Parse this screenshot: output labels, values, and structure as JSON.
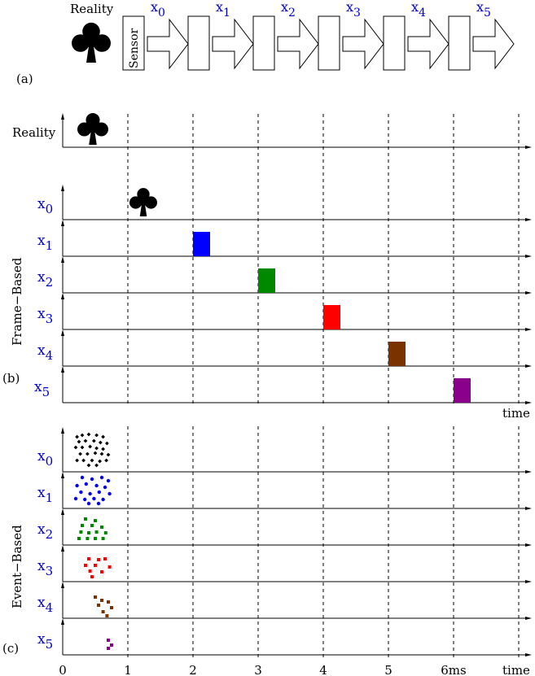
{
  "panel_a": {
    "tag": "(a)",
    "reality_label": "Reality",
    "sensor_label": "Sensor",
    "stage_labels": [
      {
        "base": "x",
        "sub": "0"
      },
      {
        "base": "x",
        "sub": "1"
      },
      {
        "base": "x",
        "sub": "2"
      },
      {
        "base": "x",
        "sub": "3"
      },
      {
        "base": "x",
        "sub": "4"
      },
      {
        "base": "x",
        "sub": "5"
      }
    ]
  },
  "panel_b": {
    "tag": "(b)",
    "side_label": "Frame−Based",
    "reality_label": "Reality",
    "axis_end_label": "time",
    "rows": [
      {
        "base": "x",
        "sub": "0",
        "color": "#000000",
        "frame_index": 1,
        "shape": "club"
      },
      {
        "base": "x",
        "sub": "1",
        "color": "#0000ff",
        "frame_index": 2,
        "shape": "rect"
      },
      {
        "base": "x",
        "sub": "2",
        "color": "#008800",
        "frame_index": 3,
        "shape": "rect"
      },
      {
        "base": "x",
        "sub": "3",
        "color": "#ff0000",
        "frame_index": 4,
        "shape": "rect"
      },
      {
        "base": "x",
        "sub": "4",
        "color": "#7a3300",
        "frame_index": 5,
        "shape": "rect"
      },
      {
        "base": "x",
        "sub": "5",
        "color": "#8b008b",
        "frame_index": 6,
        "shape": "rect"
      }
    ]
  },
  "panel_c": {
    "tag": "(c)",
    "side_label": "Event−Based",
    "rows": [
      {
        "base": "x",
        "sub": "0",
        "color": "#000000",
        "marker": "diamond"
      },
      {
        "base": "x",
        "sub": "1",
        "color": "#0000ff",
        "marker": "circle"
      },
      {
        "base": "x",
        "sub": "2",
        "color": "#008800",
        "marker": "square"
      },
      {
        "base": "x",
        "sub": "3",
        "color": "#ff0000",
        "marker": "square"
      },
      {
        "base": "x",
        "sub": "4",
        "color": "#7a3300",
        "marker": "square"
      },
      {
        "base": "x",
        "sub": "5",
        "color": "#8b008b",
        "marker": "square"
      }
    ],
    "tick_labels": [
      "0",
      "1",
      "2",
      "3",
      "4",
      "5",
      "6ms"
    ],
    "axis_end_label": "time"
  },
  "colors": {
    "label_blue": "#0000cc",
    "ink": "#000000",
    "arrow_fill": "#ffffff"
  }
}
